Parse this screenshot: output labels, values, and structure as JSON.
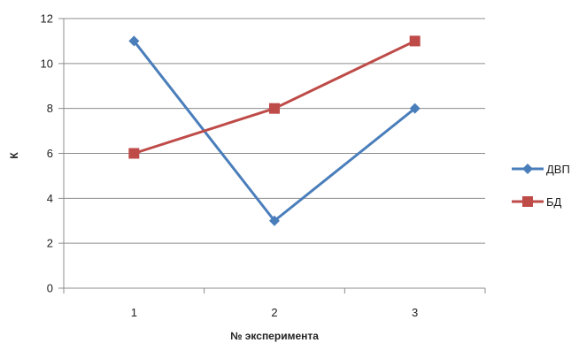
{
  "chart_data": {
    "type": "line",
    "title": "",
    "xlabel": "№ эксперимента",
    "ylabel": "К",
    "categories": [
      "1",
      "2",
      "3"
    ],
    "ylim": [
      0,
      12
    ],
    "yticks": [
      "0",
      "2",
      "4",
      "6",
      "8",
      "10",
      "12"
    ],
    "grid": true,
    "legend_position": "right",
    "series": [
      {
        "name": "ДВП",
        "values": [
          11,
          3,
          8
        ],
        "color": "#4a7ebb",
        "marker": "diamond"
      },
      {
        "name": "БД",
        "values": [
          6,
          8,
          11
        ],
        "color": "#be4b48",
        "marker": "square"
      }
    ]
  }
}
